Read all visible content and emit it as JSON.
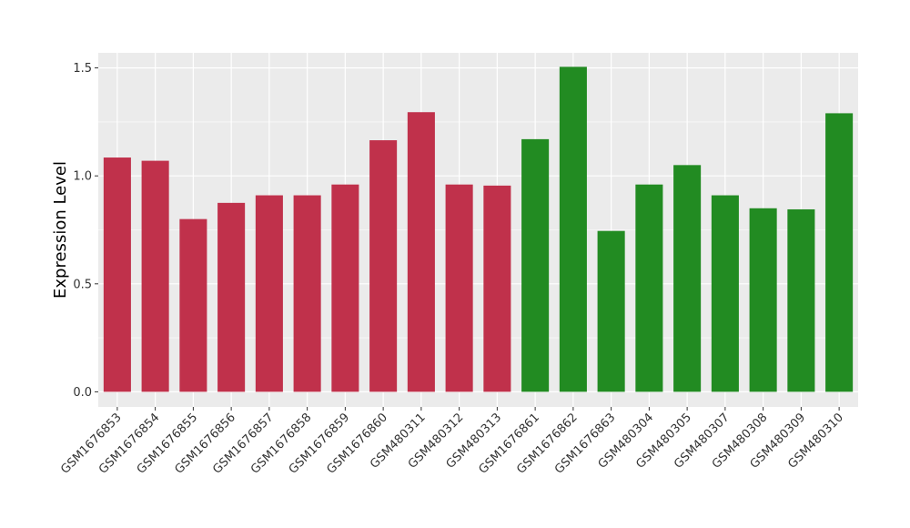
{
  "chart_data": {
    "type": "bar",
    "title": "",
    "xlabel": "",
    "ylabel": "Expression Level",
    "ylim": [
      -0.07,
      1.57
    ],
    "yticks": [
      0.0,
      0.5,
      1.0,
      1.5
    ],
    "ytick_labels": [
      "0.0",
      "0.5",
      "1.0",
      "1.5"
    ],
    "grid": true,
    "legend": "none",
    "categories": [
      "GSM1676853",
      "GSM1676854",
      "GSM1676855",
      "GSM1676856",
      "GSM1676857",
      "GSM1676858",
      "GSM1676859",
      "GSM1676860",
      "GSM480311",
      "GSM480312",
      "GSM480313",
      "GSM1676861",
      "GSM1676862",
      "GSM1676863",
      "GSM480304",
      "GSM480305",
      "GSM480307",
      "GSM480308",
      "GSM480309",
      "GSM480310"
    ],
    "values": [
      1.085,
      1.07,
      0.8,
      0.875,
      0.91,
      0.91,
      0.96,
      1.165,
      1.295,
      0.96,
      0.955,
      1.17,
      1.505,
      0.745,
      0.96,
      1.05,
      0.91,
      0.85,
      0.845,
      1.29
    ],
    "groups": [
      "red",
      "red",
      "red",
      "red",
      "red",
      "red",
      "red",
      "red",
      "red",
      "red",
      "red",
      "green",
      "green",
      "green",
      "green",
      "green",
      "green",
      "green",
      "green",
      "green"
    ],
    "colors": {
      "red": "#c0314b",
      "green": "#228b22"
    },
    "panel_background": "#ebebeb",
    "gridline_color": "#ffffff"
  }
}
